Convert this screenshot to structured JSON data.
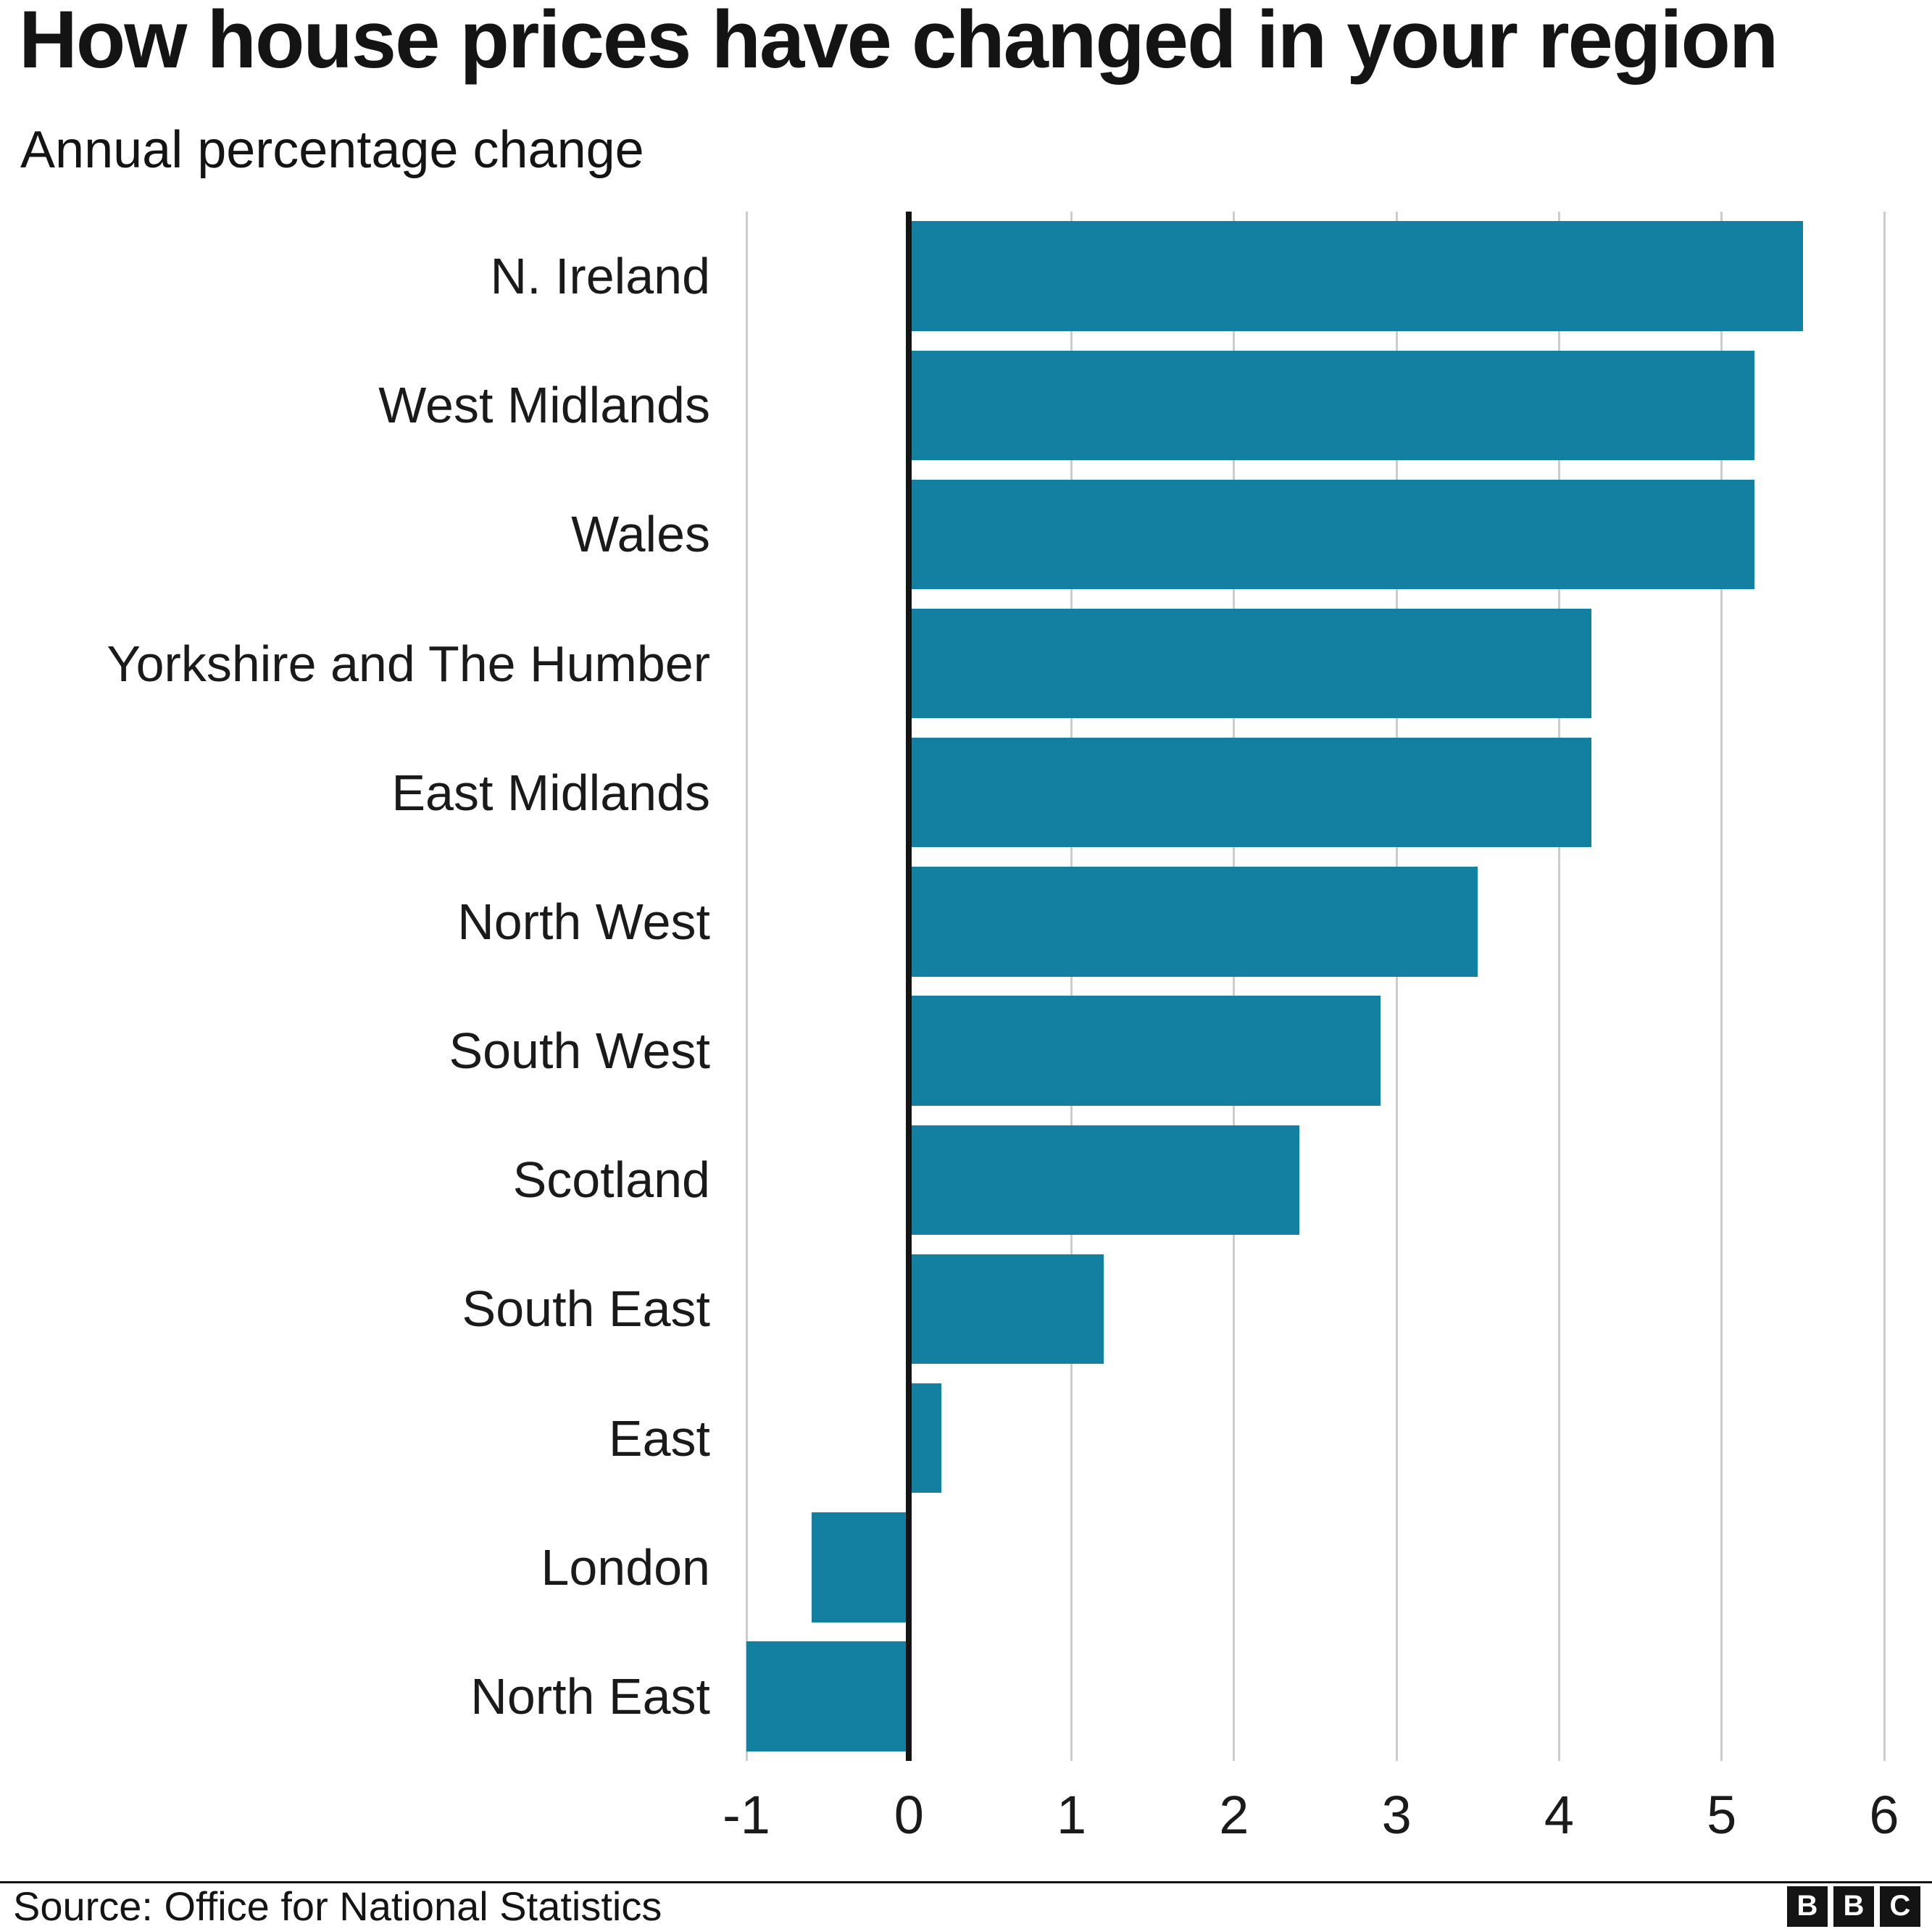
{
  "chart_data": {
    "type": "bar",
    "orientation": "horizontal",
    "title": "How house prices have changed in your region",
    "subtitle": "Annual percentage change",
    "categories": [
      "N. Ireland",
      "West Midlands",
      "Wales",
      "Yorkshire and The Humber",
      "East Midlands",
      "North West",
      "South West",
      "Scotland",
      "South East",
      "East",
      "London",
      "North East"
    ],
    "values": [
      5.5,
      5.2,
      5.2,
      4.2,
      4.2,
      3.5,
      2.9,
      2.4,
      1.2,
      0.2,
      -0.6,
      -1.0
    ],
    "xlim": [
      -1,
      6
    ],
    "xticks": [
      -1,
      0,
      1,
      2,
      3,
      4,
      5,
      6
    ],
    "xlabel": "",
    "ylabel": "",
    "grid": true,
    "legend": "none",
    "bar_color": "#1380A1",
    "zero_line_color": "#141414",
    "gridline_color": "#cccccc"
  },
  "footer": {
    "source": "Source: Office for National Statistics",
    "logo_letters": [
      "B",
      "B",
      "C"
    ]
  }
}
